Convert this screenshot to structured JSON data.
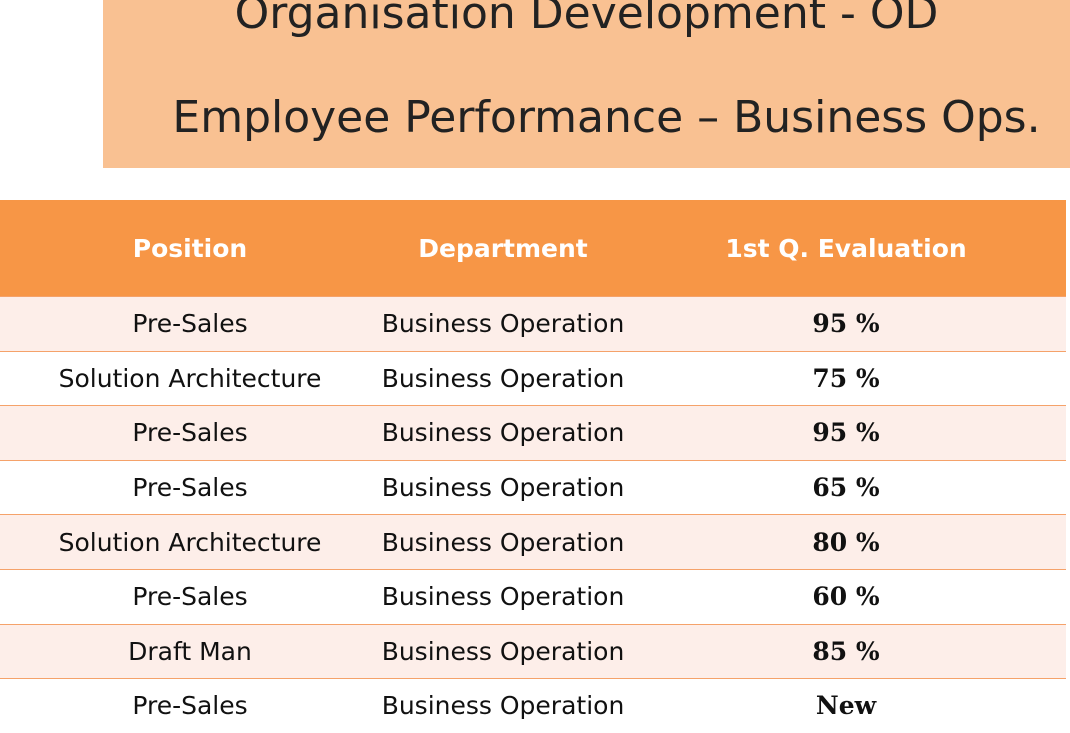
{
  "header": {
    "title_line1": "Organisation Development - OD",
    "title_line2": "Employee Performance – Business Ops."
  },
  "table": {
    "columns": [
      "Position",
      "Department",
      "1st Q. Evaluation"
    ],
    "rows": [
      [
        "Pre-Sales",
        "Business Operation",
        "95 %"
      ],
      [
        "Solution Architecture",
        "Business Operation",
        "75 %"
      ],
      [
        "Pre-Sales",
        "Business Operation",
        "95 %"
      ],
      [
        "Pre-Sales",
        "Business Operation",
        "65 %"
      ],
      [
        "Solution Architecture",
        "Business Operation",
        "80 %"
      ],
      [
        "Pre-Sales",
        "Business Operation",
        "60 %"
      ],
      [
        "Draft Man",
        "Business Operation",
        "85 %"
      ],
      [
        "Pre-Sales",
        "Business Operation",
        "New"
      ]
    ]
  }
}
